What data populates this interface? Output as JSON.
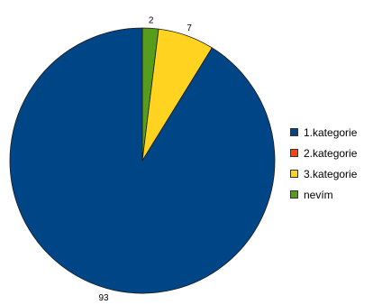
{
  "chart_data": {
    "type": "pie",
    "categories": [
      "1.kategorie",
      "2.kategorie",
      "3.kategorie",
      "nevím"
    ],
    "values": [
      93,
      0,
      7,
      2
    ],
    "data_labels": [
      "93",
      "",
      "7",
      "2"
    ],
    "colors": [
      "#004586",
      "#ff420e",
      "#ffd320",
      "#579d1c"
    ],
    "start_angle": "12 o'clock",
    "direction": "counterclockwise",
    "legend_placement": "right"
  }
}
